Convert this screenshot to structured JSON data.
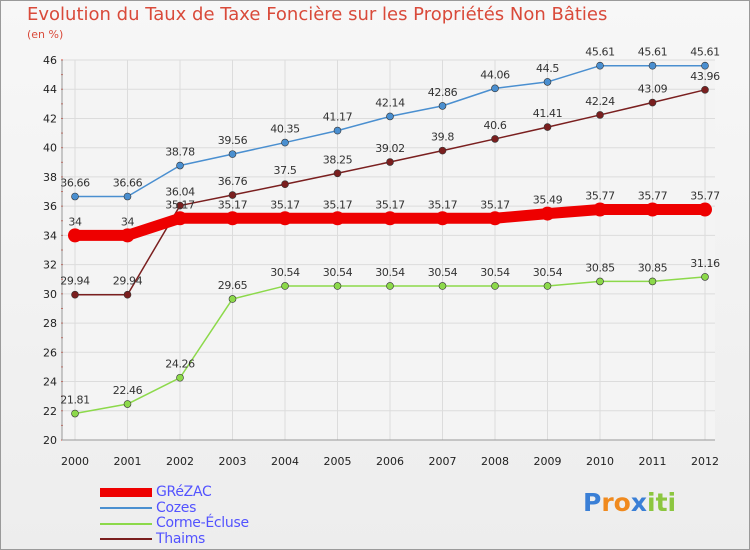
{
  "chart_data": {
    "type": "line",
    "title": "Evolution du Taux de Taxe Foncière sur les Propriétés Non Bâties",
    "ylabel": "(en %)",
    "categories": [
      "2000",
      "2001",
      "2002",
      "2003",
      "2004",
      "2005",
      "2006",
      "2007",
      "2008",
      "2009",
      "2010",
      "2011",
      "2012"
    ],
    "ylim": [
      20,
      46
    ],
    "yticks": [
      20,
      22,
      24,
      26,
      28,
      30,
      32,
      34,
      36,
      38,
      40,
      42,
      44,
      46
    ],
    "grid": true,
    "series": [
      {
        "name": "GRéZAC",
        "color": "#ee0000",
        "emphasis": true,
        "values": [
          34,
          34,
          35.17,
          35.17,
          35.17,
          35.17,
          35.17,
          35.17,
          35.17,
          35.49,
          35.77,
          35.77,
          35.77
        ],
        "labels": [
          "34",
          "34",
          "35.17",
          "35.17",
          "35.17",
          "35.17",
          "35.17",
          "35.17",
          "35.17",
          "35.49",
          "35.77",
          "35.77",
          "35.77"
        ]
      },
      {
        "name": "Cozes",
        "color": "#4a8fd0",
        "values": [
          36.66,
          36.66,
          38.78,
          39.56,
          40.35,
          41.17,
          42.14,
          42.86,
          44.06,
          44.5,
          45.61,
          45.61,
          45.61
        ],
        "labels": [
          "36.66",
          "36.66",
          "38.78",
          "39.56",
          "40.35",
          "41.17",
          "42.14",
          "42.86",
          "44.06",
          "44.5",
          "45.61",
          "45.61",
          "45.61"
        ]
      },
      {
        "name": "Corme-Écluse",
        "color": "#8cd94a",
        "values": [
          21.81,
          22.46,
          24.26,
          29.65,
          30.54,
          30.54,
          30.54,
          30.54,
          30.54,
          30.54,
          30.85,
          30.85,
          31.16
        ],
        "labels": [
          "21.81",
          "22.46",
          "24.26",
          "29.65",
          "30.54",
          "30.54",
          "30.54",
          "30.54",
          "30.54",
          "30.54",
          "30.85",
          "30.85",
          "31.16"
        ]
      },
      {
        "name": "Thaims",
        "color": "#7a1f1f",
        "values": [
          29.94,
          29.94,
          36.04,
          36.76,
          37.5,
          38.25,
          39.02,
          39.8,
          40.6,
          41.41,
          42.24,
          43.09,
          43.96
        ],
        "labels": [
          "29.94",
          "29.94",
          "36.04",
          "36.76",
          "37.5",
          "38.25",
          "39.02",
          "39.8",
          "40.6",
          "41.41",
          "42.24",
          "43.09",
          "43.96"
        ]
      }
    ]
  },
  "logo": {
    "text": "Proxiti",
    "letters": [
      "P",
      "r",
      "o",
      "x",
      "i",
      "t",
      "i"
    ],
    "colors": [
      "#3a7fd6",
      "#f08a1e",
      "#f08a1e",
      "#3a7fd6",
      "#8cc63f",
      "#8cc63f",
      "#8cc63f"
    ]
  }
}
